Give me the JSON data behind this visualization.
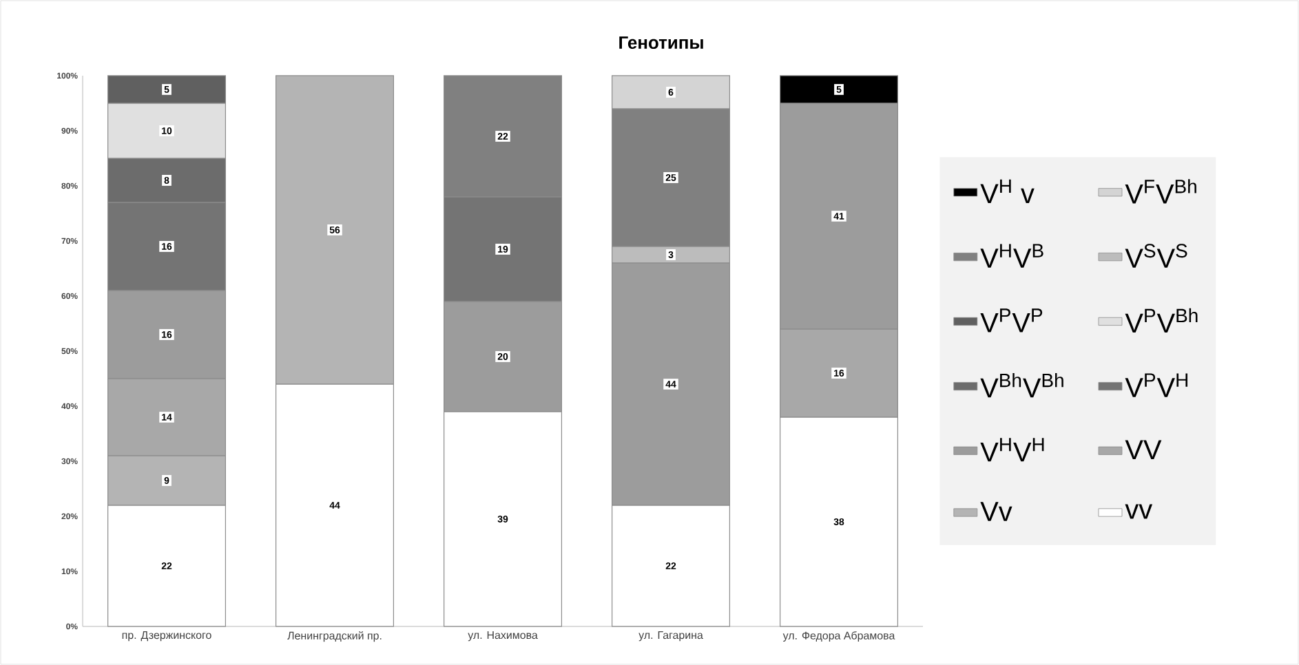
{
  "chart_data": {
    "type": "bar",
    "stacked": true,
    "title": "Генотипы",
    "categories": [
      "пр. Дзержинского",
      "Ленинградский пр.",
      "ул. Нахимова",
      "ул. Гагарина",
      "ул. Федора Абрамова"
    ],
    "ylim": [
      0,
      100
    ],
    "yticks": [
      {
        "value": 0,
        "label": "0%"
      },
      {
        "value": 10,
        "label": "10%"
      },
      {
        "value": 20,
        "label": "20%"
      },
      {
        "value": 30,
        "label": "30%"
      },
      {
        "value": 40,
        "label": "40%"
      },
      {
        "value": 50,
        "label": "50%"
      },
      {
        "value": 60,
        "label": "60%"
      },
      {
        "value": 70,
        "label": "70%"
      },
      {
        "value": 80,
        "label": "80%"
      },
      {
        "value": 90,
        "label": "90%"
      },
      {
        "value": 100,
        "label": "100%"
      }
    ],
    "data_labels": true,
    "legend": "right",
    "series": [
      {
        "name": "vv",
        "color": "#ffffff",
        "values": [
          22,
          44,
          39,
          22,
          38
        ]
      },
      {
        "name": "Vv",
        "color": "#b4b4b4",
        "values": [
          9,
          56,
          null,
          null,
          null
        ]
      },
      {
        "name": "VV",
        "color": "#a8a8a8",
        "values": [
          14,
          null,
          null,
          null,
          16
        ]
      },
      {
        "name": "V$^{H}$V$^{H}$",
        "color": "#9c9c9c",
        "values": [
          16,
          null,
          20,
          44,
          41
        ]
      },
      {
        "name": "V$^{P}$V$^{H}$",
        "color": "#747474",
        "values": [
          16,
          null,
          19,
          null,
          null
        ]
      },
      {
        "name": "V$^{Bh}$V$^{Bh}$",
        "color": "#6c6c6c",
        "values": [
          8,
          null,
          null,
          null,
          null
        ]
      },
      {
        "name": "V$^{P}$V$^{Bh}$",
        "color": "#e0e0e0",
        "values": [
          10,
          null,
          null,
          null,
          null
        ]
      },
      {
        "name": "V$^{P}$V$^{P}$",
        "color": "#606060",
        "values": [
          5,
          null,
          null,
          null,
          null
        ]
      },
      {
        "name": "V$^{S}$V$^{S}$",
        "color": "#bcbcbc",
        "values": [
          null,
          null,
          null,
          3,
          null
        ]
      },
      {
        "name": "V$^{H}$V$^{B}$",
        "color": "#808080",
        "values": [
          null,
          null,
          22,
          25,
          null
        ]
      },
      {
        "name": "V$^{F}$V$^{Bh}$",
        "color": "#d4d4d4",
        "values": [
          null,
          null,
          null,
          6,
          null
        ]
      },
      {
        "name": "V$^{H}$ v",
        "color": "#000000",
        "values": [
          null,
          null,
          null,
          null,
          5
        ]
      }
    ]
  }
}
